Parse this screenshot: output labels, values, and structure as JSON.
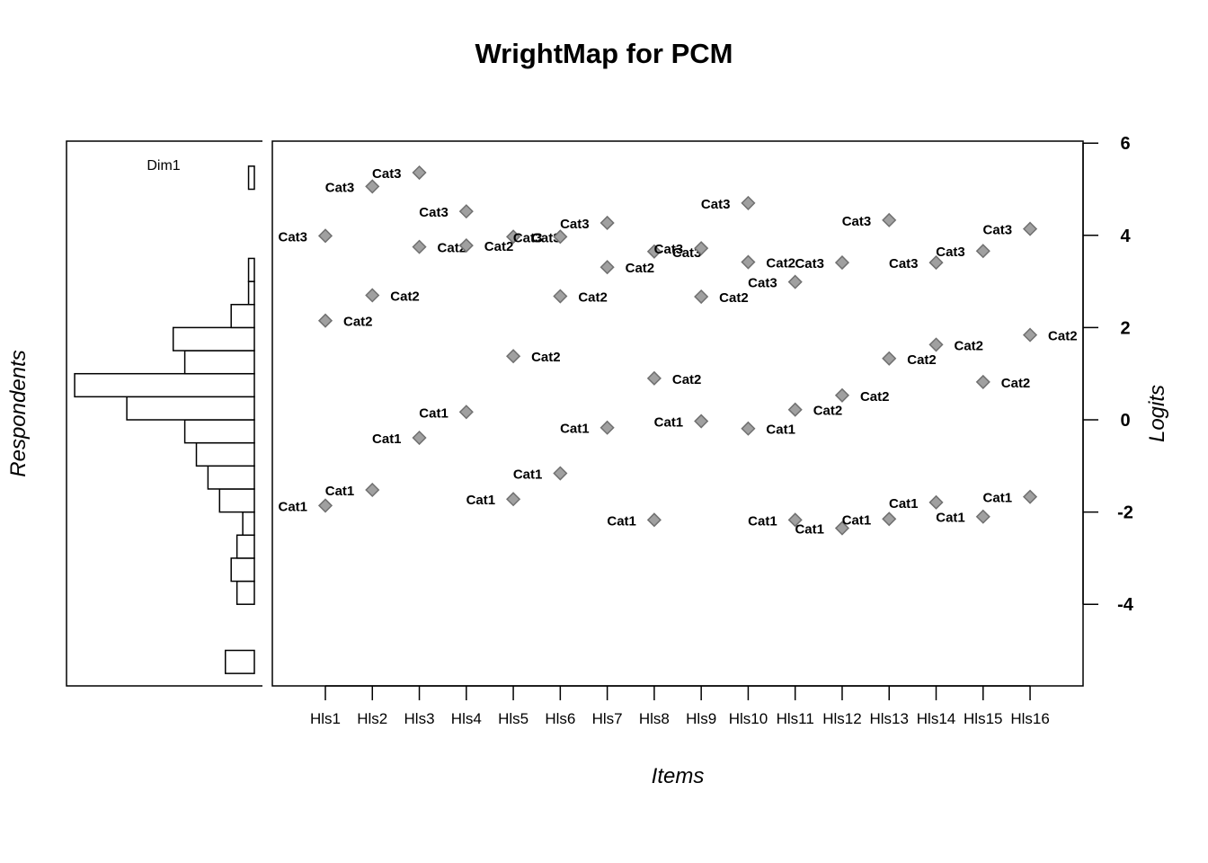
{
  "chart_data": {
    "type": "scatter",
    "title": "WrightMap for PCM",
    "xlabel": "Items",
    "ylabel": "Logits",
    "left_ylabel": "Respondents",
    "panel_label": "Dim1",
    "ylim": [
      -5.8,
      6.0
    ],
    "y_ticks": [
      "6",
      "4",
      "2",
      "0",
      "-2",
      "-4"
    ],
    "y_tick_values": [
      6,
      4,
      2,
      0,
      -2,
      -4
    ],
    "grid": false,
    "marker_color": "#a0a0a0",
    "marker_edge": "#707070",
    "categories": [
      "Hls1",
      "Hls2",
      "Hls3",
      "Hls4",
      "Hls5",
      "Hls6",
      "Hls7",
      "Hls8",
      "Hls9",
      "Hls10",
      "Hls11",
      "Hls12",
      "Hls13",
      "Hls14",
      "Hls15",
      "Hls16"
    ],
    "series": [
      {
        "name": "Cat1",
        "values": [
          -1.86,
          -1.52,
          -0.39,
          0.17,
          -1.72,
          -1.16,
          -0.17,
          -2.17,
          -0.03,
          -0.19,
          -2.17,
          -2.35,
          -2.15,
          -1.79,
          -2.1,
          -1.67
        ],
        "label_side": [
          "left",
          "left",
          "left",
          "left",
          "left",
          "left",
          "left",
          "left",
          "left",
          "right",
          "left",
          "left",
          "left",
          "left",
          "left",
          "left"
        ]
      },
      {
        "name": "Cat2",
        "values": [
          2.15,
          2.7,
          3.75,
          3.78,
          1.38,
          2.68,
          3.31,
          0.9,
          2.67,
          3.42,
          0.22,
          0.53,
          1.33,
          1.63,
          0.82,
          1.84
        ],
        "label_side": [
          "right",
          "right",
          "right",
          "right",
          "right",
          "right",
          "right",
          "right",
          "right",
          "right",
          "right",
          "right",
          "right",
          "right",
          "right",
          "right"
        ]
      },
      {
        "name": "Cat3",
        "values": [
          3.99,
          5.06,
          5.36,
          4.52,
          3.97,
          3.97,
          4.27,
          3.65,
          3.72,
          4.7,
          2.99,
          3.41,
          4.33,
          3.41,
          3.66,
          4.14
        ],
        "label_side": [
          "left",
          "left",
          "left",
          "left",
          "right",
          "left",
          "left",
          "right",
          "left",
          "left",
          "left",
          "left",
          "left",
          "left",
          "left",
          "left"
        ]
      }
    ],
    "histogram": {
      "bin_width": 0.5,
      "bins_low_to_high": [
        {
          "from": -5.5,
          "to": -5.0,
          "count": 5
        },
        {
          "from": -5.0,
          "to": -4.5,
          "count": 0
        },
        {
          "from": -4.5,
          "to": -4.0,
          "count": 0
        },
        {
          "from": -4.0,
          "to": -3.5,
          "count": 3
        },
        {
          "from": -3.5,
          "to": -3.0,
          "count": 4
        },
        {
          "from": -3.0,
          "to": -2.5,
          "count": 3
        },
        {
          "from": -2.5,
          "to": -2.0,
          "count": 2
        },
        {
          "from": -2.0,
          "to": -1.5,
          "count": 6
        },
        {
          "from": -1.5,
          "to": -1.0,
          "count": 8
        },
        {
          "from": -1.0,
          "to": -0.5,
          "count": 10
        },
        {
          "from": -0.5,
          "to": 0.0,
          "count": 12
        },
        {
          "from": 0.0,
          "to": 0.5,
          "count": 22
        },
        {
          "from": 0.5,
          "to": 1.0,
          "count": 31
        },
        {
          "from": 1.0,
          "to": 1.5,
          "count": 12
        },
        {
          "from": 1.5,
          "to": 2.0,
          "count": 14
        },
        {
          "from": 2.0,
          "to": 2.5,
          "count": 4
        },
        {
          "from": 2.5,
          "to": 3.0,
          "count": 1
        },
        {
          "from": 3.0,
          "to": 3.5,
          "count": 1
        },
        {
          "from": 3.5,
          "to": 4.0,
          "count": 0
        },
        {
          "from": 4.0,
          "to": 4.5,
          "count": 0
        },
        {
          "from": 4.5,
          "to": 5.0,
          "count": 0
        },
        {
          "from": 5.0,
          "to": 5.5,
          "count": 1
        }
      ]
    }
  }
}
